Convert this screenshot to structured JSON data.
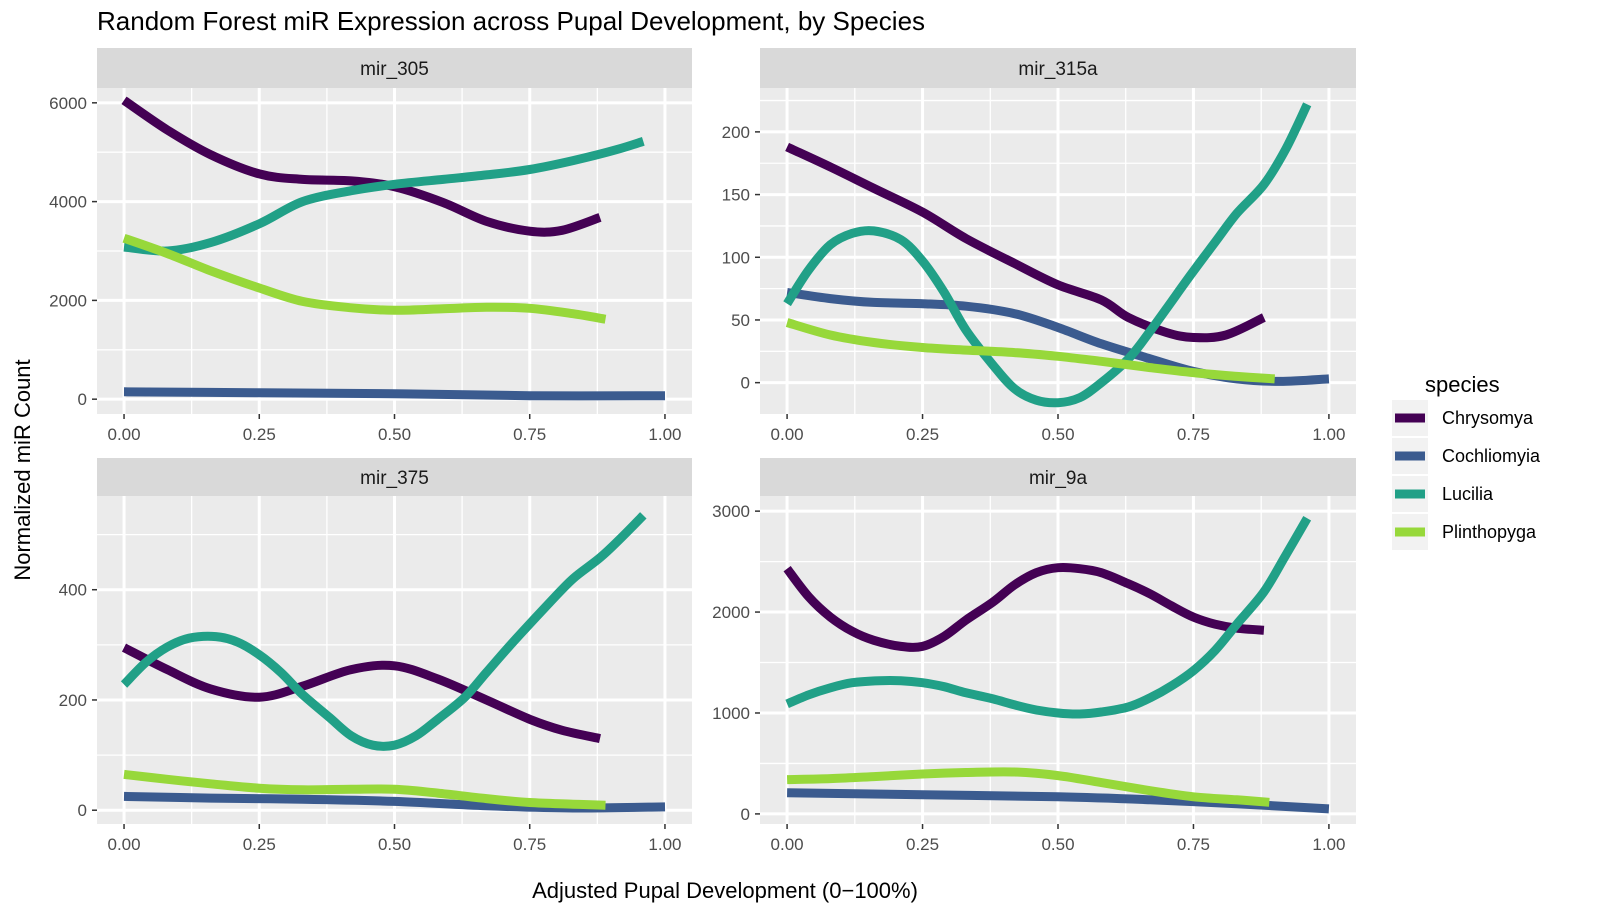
{
  "chart_data": {
    "type": "line",
    "title": "Random Forest miR Expression across Pupal Development, by Species",
    "xlabel": "Adjusted Pupal Development (0−100%)",
    "ylabel": "Normalized miR Count",
    "legend": {
      "title": "species",
      "position": "right"
    },
    "series_colors": {
      "Chrysomya": "#440154",
      "Cochliomyia": "#3b5b8f",
      "Lucilia": "#21a087",
      "Plinthopyga": "#97d83a"
    },
    "xlim": [
      -0.05,
      1.05
    ],
    "x_ticks": [
      0,
      0.25,
      0.5,
      0.75,
      1
    ],
    "x_tick_labels": [
      "0.00",
      "0.25",
      "0.50",
      "0.75",
      "1.00"
    ],
    "grid": true,
    "facets": [
      {
        "label": "mir_305",
        "ylim": [
          -300,
          6300
        ],
        "y_ticks": [
          0,
          2000,
          4000,
          6000
        ],
        "y_tick_labels": [
          "0",
          "2000",
          "4000",
          "6000"
        ],
        "series": [
          {
            "name": "Chrysomya",
            "x": [
              0,
              0.08,
              0.16,
              0.25,
              0.33,
              0.42,
              0.5,
              0.59,
              0.67,
              0.75,
              0.81,
              0.88
            ],
            "y": [
              6050,
              5450,
              4950,
              4560,
              4450,
              4420,
              4300,
              3980,
              3600,
              3400,
              3420,
              3680
            ]
          },
          {
            "name": "Cochliomyia",
            "x": [
              0,
              0.25,
              0.5,
              0.75,
              1.0
            ],
            "y": [
              150,
              130,
              110,
              70,
              70
            ]
          },
          {
            "name": "Lucilia",
            "x": [
              0,
              0.08,
              0.16,
              0.25,
              0.33,
              0.42,
              0.5,
              0.59,
              0.67,
              0.75,
              0.83,
              0.91,
              0.96
            ],
            "y": [
              3080,
              3000,
              3170,
              3550,
              4000,
              4220,
              4350,
              4450,
              4540,
              4650,
              4830,
              5050,
              5220
            ]
          },
          {
            "name": "Plinthopyga",
            "x": [
              0,
              0.08,
              0.16,
              0.25,
              0.33,
              0.42,
              0.5,
              0.59,
              0.67,
              0.75,
              0.83,
              0.89
            ],
            "y": [
              3260,
              2950,
              2600,
              2250,
              1980,
              1850,
              1800,
              1830,
              1860,
              1840,
              1730,
              1620
            ]
          }
        ]
      },
      {
        "label": "mir_315a",
        "ylim": [
          -25,
          235
        ],
        "y_ticks": [
          0,
          50,
          100,
          150,
          200
        ],
        "y_tick_labels": [
          "0",
          "50",
          "100",
          "150",
          "200"
        ],
        "series": [
          {
            "name": "Chrysomya",
            "x": [
              0,
              0.08,
              0.16,
              0.25,
              0.33,
              0.42,
              0.5,
              0.58,
              0.63,
              0.7,
              0.75,
              0.81,
              0.88
            ],
            "y": [
              188,
              172,
              155,
              136,
              115,
              95,
              78,
              66,
              52,
              40,
              36,
              38,
              52
            ]
          },
          {
            "name": "Cochliomyia",
            "x": [
              0,
              0.08,
              0.16,
              0.25,
              0.33,
              0.42,
              0.5,
              0.58,
              0.67,
              0.75,
              0.83,
              0.91,
              1.0
            ],
            "y": [
              72,
              67,
              64,
              63,
              61,
              55,
              44,
              31,
              19,
              9,
              3,
              1,
              3
            ]
          },
          {
            "name": "Lucilia",
            "x": [
              0,
              0.04,
              0.08,
              0.12,
              0.16,
              0.21,
              0.25,
              0.29,
              0.33,
              0.38,
              0.42,
              0.46,
              0.5,
              0.54,
              0.58,
              0.63,
              0.67,
              0.71,
              0.75,
              0.79,
              0.83,
              0.88,
              0.92,
              0.96
            ],
            "y": [
              63,
              90,
              110,
              119,
              121,
              114,
              97,
              72,
              42,
              14,
              -5,
              -14,
              -16,
              -12,
              0,
              19,
              41,
              65,
              89,
              112,
              135,
              158,
              186,
              222
            ]
          },
          {
            "name": "Plinthopyga",
            "x": [
              0,
              0.08,
              0.16,
              0.25,
              0.33,
              0.42,
              0.5,
              0.58,
              0.67,
              0.75,
              0.83,
              0.9
            ],
            "y": [
              48,
              38,
              32,
              28,
              26,
              24,
              21,
              17,
              12,
              8,
              5,
              3
            ]
          }
        ]
      },
      {
        "label": "mir_375",
        "ylim": [
          -25,
          570
        ],
        "y_ticks": [
          0,
          200,
          400
        ],
        "y_tick_labels": [
          "0",
          "200",
          "400"
        ],
        "series": [
          {
            "name": "Chrysomya",
            "x": [
              0,
              0.08,
              0.16,
              0.25,
              0.33,
              0.42,
              0.5,
              0.58,
              0.67,
              0.75,
              0.81,
              0.88
            ],
            "y": [
              295,
              255,
              220,
              205,
              225,
              255,
              262,
              238,
              200,
              165,
              145,
              130
            ]
          },
          {
            "name": "Cochliomyia",
            "x": [
              0,
              0.16,
              0.33,
              0.5,
              0.67,
              0.83,
              1.0
            ],
            "y": [
              25,
              22,
              20,
              16,
              8,
              4,
              6
            ]
          },
          {
            "name": "Lucilia",
            "x": [
              0,
              0.04,
              0.08,
              0.12,
              0.17,
              0.21,
              0.25,
              0.29,
              0.33,
              0.38,
              0.42,
              0.46,
              0.5,
              0.54,
              0.58,
              0.63,
              0.67,
              0.71,
              0.75,
              0.79,
              0.83,
              0.88,
              0.92,
              0.96
            ],
            "y": [
              228,
              268,
              296,
              312,
              315,
              305,
              282,
              250,
              210,
              168,
              135,
              118,
              118,
              135,
              165,
              205,
              250,
              295,
              338,
              380,
              420,
              458,
              495,
              535
            ]
          },
          {
            "name": "Plinthopyga",
            "x": [
              0,
              0.08,
              0.16,
              0.25,
              0.33,
              0.42,
              0.5,
              0.58,
              0.67,
              0.75,
              0.83,
              0.89
            ],
            "y": [
              65,
              56,
              48,
              40,
              37,
              38,
              38,
              31,
              21,
              14,
              11,
              9
            ]
          }
        ]
      },
      {
        "label": "mir_9a",
        "ylim": [
          -100,
          3150
        ],
        "y_ticks": [
          0,
          1000,
          2000,
          3000
        ],
        "y_tick_labels": [
          "0",
          "1000",
          "2000",
          "3000"
        ],
        "series": [
          {
            "name": "Chrysomya",
            "x": [
              0,
              0.04,
              0.08,
              0.12,
              0.16,
              0.21,
              0.25,
              0.29,
              0.33,
              0.38,
              0.42,
              0.46,
              0.5,
              0.54,
              0.58,
              0.63,
              0.67,
              0.71,
              0.75,
              0.79,
              0.83,
              0.88
            ],
            "y": [
              2430,
              2150,
              1950,
              1810,
              1720,
              1660,
              1660,
              1760,
              1920,
              2100,
              2270,
              2390,
              2440,
              2430,
              2390,
              2280,
              2180,
              2060,
              1950,
              1880,
              1840,
              1820
            ]
          },
          {
            "name": "Cochliomyia",
            "x": [
              0,
              0.25,
              0.5,
              0.67,
              0.83,
              1.0
            ],
            "y": [
              210,
              190,
              170,
              140,
              100,
              50
            ]
          },
          {
            "name": "Lucilia",
            "x": [
              0,
              0.04,
              0.08,
              0.12,
              0.17,
              0.21,
              0.25,
              0.29,
              0.33,
              0.38,
              0.42,
              0.46,
              0.5,
              0.54,
              0.58,
              0.63,
              0.67,
              0.71,
              0.75,
              0.79,
              0.83,
              0.88,
              0.92,
              0.96
            ],
            "y": [
              1090,
              1180,
              1250,
              1300,
              1320,
              1320,
              1300,
              1260,
              1200,
              1140,
              1080,
              1030,
              1000,
              990,
              1010,
              1060,
              1150,
              1270,
              1420,
              1620,
              1880,
              2200,
              2560,
              2930
            ]
          },
          {
            "name": "Plinthopyga",
            "x": [
              0,
              0.08,
              0.16,
              0.25,
              0.33,
              0.42,
              0.5,
              0.58,
              0.67,
              0.75,
              0.83,
              0.89
            ],
            "y": [
              340,
              350,
              370,
              395,
              410,
              415,
              380,
              310,
              230,
              170,
              140,
              115
            ]
          }
        ]
      }
    ]
  }
}
